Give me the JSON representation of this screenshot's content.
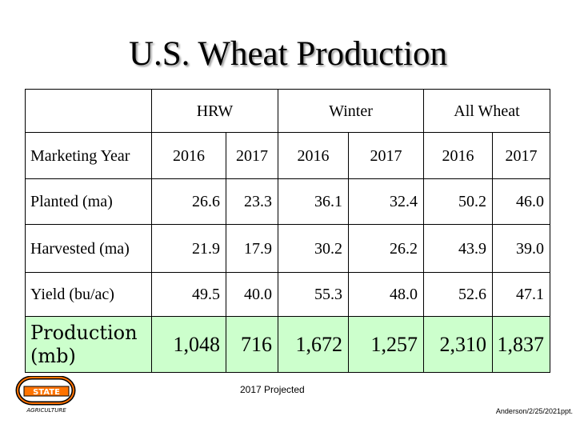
{
  "title": "U.S. Wheat Production",
  "table": {
    "header_label": "Marketing Year",
    "groups": [
      "HRW",
      "Winter",
      "All Wheat"
    ],
    "years": [
      "2016",
      "2017",
      "2016",
      "2017",
      "2016",
      "2017"
    ],
    "rows": [
      {
        "label": "Planted (ma)",
        "values": [
          "26.6",
          "23.3",
          "36.1",
          "32.4",
          "50.2",
          "46.0"
        ]
      },
      {
        "label": "Harvested (ma)",
        "values": [
          "21.9",
          "17.9",
          "30.2",
          "26.2",
          "43.9",
          "39.0"
        ]
      },
      {
        "label": "Yield (bu/ac)",
        "values": [
          "49.5",
          "40.0",
          "55.3",
          "48.0",
          "52.6",
          "47.1"
        ]
      },
      {
        "label": "Production (mb)",
        "values": [
          "1,048",
          "716",
          "1,672",
          "1,257",
          "2,310",
          "1,837"
        ]
      }
    ]
  },
  "note": "2017 Projected",
  "footer": "Anderson/2/25/2021ppt.",
  "logo": {
    "text": "STATE",
    "sub": "AGRICULTURE",
    "colors": {
      "orange": "#ff7300",
      "black": "#000000"
    }
  }
}
